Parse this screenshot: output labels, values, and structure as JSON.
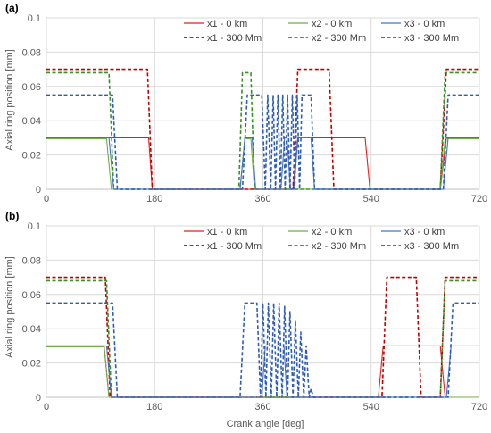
{
  "figure": {
    "x_axis_title": "Crank angle [deg]"
  },
  "chart_data": [
    {
      "type": "line",
      "panel_label": "(a)",
      "xlabel": "",
      "ylabel": "Axial ring position [mm]",
      "xlim": [
        0,
        720
      ],
      "ylim": [
        0,
        0.1
      ],
      "xticks": [
        "0",
        "180",
        "360",
        "540",
        "720"
      ],
      "yticks": [
        "0",
        "0.02",
        "0.04",
        "0.06",
        "0.08",
        "0.1"
      ],
      "grid": true,
      "legend": "top-right",
      "series": [
        {
          "name": "x1 - 0 km",
          "color": "#e02020",
          "dashed": false,
          "x": [
            0,
            100,
            112,
            122,
            170,
            176,
            410,
            418,
            425,
            530,
            538,
            655,
            665,
            720
          ],
          "y": [
            0.03,
            0.03,
            0.03,
            0.03,
            0.03,
            0,
            0,
            0.03,
            0.03,
            0.03,
            0,
            0,
            0.03,
            0.03
          ]
        },
        {
          "name": "x1 - 300 Mm",
          "color": "#c00000",
          "dashed": true,
          "x": [
            0,
            168,
            176,
            410,
            418,
            470,
            478,
            655,
            665,
            720
          ],
          "y": [
            0.07,
            0.07,
            0,
            0,
            0.07,
            0.07,
            0,
            0,
            0.07,
            0.07
          ]
        },
        {
          "name": "x2 - 0 km",
          "color": "#70ad47",
          "dashed": false,
          "x": [
            0,
            100,
            108,
            322,
            330,
            340,
            346,
            655,
            663,
            720
          ],
          "y": [
            0.0295,
            0.0295,
            0,
            0,
            0.0295,
            0.0295,
            0,
            0,
            0.0295,
            0.0295
          ]
        },
        {
          "name": "x2 - 300 Mm",
          "color": "#3b8e2a",
          "dashed": true,
          "x": [
            0,
            104,
            112,
            320,
            326,
            340,
            346,
            655,
            663,
            720
          ],
          "y": [
            0.068,
            0.068,
            0,
            0,
            0.068,
            0.068,
            0,
            0,
            0.068,
            0.068
          ]
        },
        {
          "name": "x3 - 0 km",
          "color": "#4472c4",
          "dashed": false,
          "x": [
            0,
            104,
            112,
            322,
            330,
            342,
            348,
            390,
            396,
            400,
            406,
            412,
            418,
            440,
            446,
            660,
            668,
            720
          ],
          "y": [
            0.03,
            0.03,
            0,
            0,
            0.03,
            0.03,
            0,
            0,
            0.03,
            0.03,
            0,
            0,
            0.03,
            0.03,
            0,
            0,
            0.03,
            0.03
          ]
        },
        {
          "name": "x3 - 300 Mm",
          "color": "#2e5cb8",
          "dashed": true,
          "x": [
            0,
            110,
            118,
            326,
            334,
            358,
            364,
            368,
            373,
            377,
            381,
            385,
            389,
            393,
            397,
            401,
            405,
            409,
            413,
            417,
            421,
            425,
            430,
            434,
            440,
            446,
            660,
            668,
            720
          ],
          "y": [
            0.055,
            0.055,
            0,
            0,
            0.055,
            0.055,
            0,
            0.055,
            0,
            0.055,
            0,
            0.055,
            0,
            0.055,
            0,
            0.055,
            0,
            0.055,
            0,
            0.055,
            0,
            0.055,
            0.055,
            0.055,
            0.055,
            0,
            0,
            0.055,
            0.055
          ]
        }
      ]
    },
    {
      "type": "line",
      "panel_label": "(b)",
      "xlabel": "Crank angle [deg]",
      "ylabel": "Axial ring position [mm]",
      "xlim": [
        0,
        720
      ],
      "ylim": [
        0,
        0.1
      ],
      "xticks": [
        "0",
        "180",
        "360",
        "540",
        "720"
      ],
      "yticks": [
        "0",
        "0.02",
        "0.04",
        "0.06",
        "0.08",
        "0.1"
      ],
      "grid": true,
      "legend": "top-right",
      "series": [
        {
          "name": "x1 - 0 km",
          "color": "#e02020",
          "dashed": false,
          "x": [
            0,
            96,
            104,
            552,
            560,
            655,
            663,
            720
          ],
          "y": [
            0.03,
            0.03,
            0,
            0,
            0.03,
            0.03,
            0,
            0
          ]
        },
        {
          "name": "x1 - 300 Mm",
          "color": "#c00000",
          "dashed": true,
          "x": [
            0,
            98,
            106,
            558,
            566,
            615,
            623,
            655,
            663,
            720
          ],
          "y": [
            0.07,
            0.07,
            0,
            0,
            0.07,
            0.07,
            0,
            0,
            0.07,
            0.07
          ]
        },
        {
          "name": "x2 - 0 km",
          "color": "#70ad47",
          "dashed": false,
          "x": [
            0,
            96,
            104,
            720
          ],
          "y": [
            0.0295,
            0.0295,
            0,
            0
          ]
        },
        {
          "name": "x2 - 300 Mm",
          "color": "#3b8e2a",
          "dashed": true,
          "x": [
            0,
            100,
            108,
            655,
            663,
            720
          ],
          "y": [
            0.068,
            0.068,
            0,
            0,
            0.068,
            0.068
          ]
        },
        {
          "name": "x3 - 0 km",
          "color": "#4472c4",
          "dashed": false,
          "x": [
            0,
            100,
            108,
            358,
            364,
            395,
            400,
            665,
            673,
            720
          ],
          "y": [
            0.03,
            0.03,
            0,
            0,
            0.03,
            0.03,
            0,
            0,
            0.03,
            0.03
          ]
        },
        {
          "name": "x3 - 300 Mm",
          "color": "#2e5cb8",
          "dashed": true,
          "x": [
            0,
            110,
            118,
            322,
            330,
            350,
            356,
            360,
            365,
            369,
            374,
            378,
            383,
            387,
            392,
            396,
            401,
            405,
            410,
            414,
            419,
            423,
            428,
            432,
            437,
            440,
            444,
            668,
            676,
            720
          ],
          "y": [
            0.055,
            0.055,
            0,
            0,
            0.055,
            0.055,
            0,
            0.055,
            0,
            0.055,
            0,
            0.055,
            0,
            0.055,
            0,
            0.053,
            0,
            0.05,
            0,
            0.045,
            0,
            0.038,
            0,
            0.03,
            0,
            0.005,
            0,
            0,
            0.055,
            0.055
          ]
        }
      ]
    }
  ]
}
